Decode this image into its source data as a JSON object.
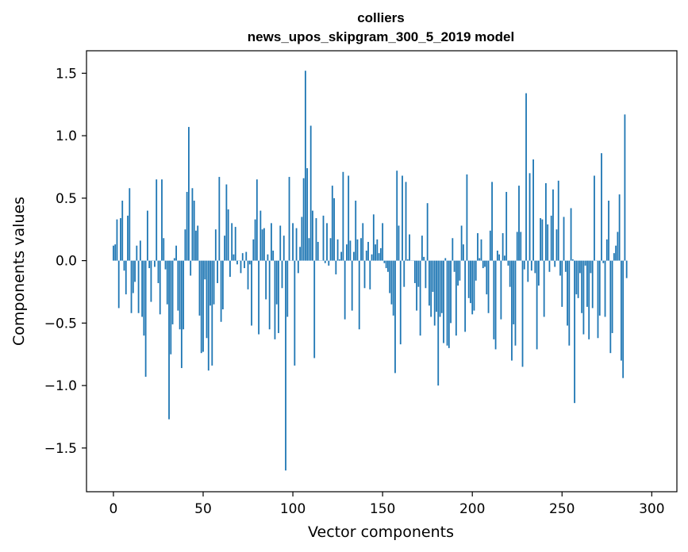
{
  "chart_data": {
    "type": "bar",
    "title": "colliers",
    "subtitle": "news_upos_skipgram_300_5_2019 model",
    "xlabel": "Vector components",
    "ylabel": "Components values",
    "xlim": [
      -15,
      314
    ],
    "ylim": [
      -1.85,
      1.68
    ],
    "xticks": [
      0,
      50,
      100,
      150,
      200,
      250,
      300
    ],
    "yticks": [
      -1.5,
      -1.0,
      -0.5,
      0.0,
      0.5,
      1.0,
      1.5
    ],
    "xtick_labels": [
      "0",
      "50",
      "100",
      "150",
      "200",
      "250",
      "300"
    ],
    "ytick_labels": [
      "−1.5",
      "−1.0",
      "−0.5",
      "0.0",
      "0.5",
      "1.0",
      "1.5"
    ],
    "bar_color": "#1f77b4",
    "values": [
      0.12,
      0.13,
      0.33,
      -0.38,
      0.34,
      0.48,
      -0.08,
      -0.27,
      0.36,
      0.58,
      -0.42,
      -0.26,
      -0.17,
      0.12,
      -0.42,
      0.16,
      -0.45,
      -0.6,
      -0.93,
      0.4,
      -0.06,
      -0.33,
      0.0,
      -0.05,
      0.65,
      -0.18,
      -0.43,
      0.65,
      0.18,
      -0.07,
      -0.35,
      -1.27,
      -0.75,
      -0.51,
      0.02,
      0.12,
      -0.4,
      -0.55,
      -0.86,
      -0.55,
      0.25,
      0.55,
      1.07,
      -0.12,
      0.58,
      0.48,
      0.24,
      0.28,
      -0.44,
      -0.74,
      -0.73,
      -0.15,
      -0.62,
      -0.88,
      -0.36,
      -0.84,
      -0.35,
      0.25,
      -0.18,
      0.67,
      -0.49,
      -0.39,
      0.2,
      0.61,
      0.41,
      -0.13,
      0.3,
      0.05,
      0.27,
      -0.03,
      0.0,
      -0.1,
      0.06,
      -0.06,
      0.07,
      -0.23,
      -0.03,
      -0.52,
      0.17,
      0.33,
      0.65,
      -0.59,
      0.4,
      0.25,
      0.26,
      -0.31,
      0.05,
      -0.55,
      0.3,
      0.08,
      -0.63,
      -0.35,
      -0.58,
      0.28,
      -0.22,
      0.2,
      -1.68,
      -0.45,
      0.67,
      0.0,
      0.3,
      -0.84,
      0.26,
      -0.1,
      0.11,
      0.35,
      0.66,
      1.52,
      0.74,
      0.18,
      1.08,
      0.4,
      -0.78,
      0.34,
      0.15,
      0.0,
      0.0,
      0.36,
      -0.02,
      0.3,
      -0.04,
      0.18,
      0.6,
      0.5,
      -0.11,
      0.17,
      0.01,
      0.07,
      0.71,
      -0.47,
      0.13,
      0.68,
      0.16,
      -0.4,
      0.07,
      0.48,
      0.17,
      -0.55,
      0.18,
      0.3,
      -0.22,
      0.08,
      0.15,
      -0.23,
      0.05,
      0.37,
      0.13,
      0.17,
      0.06,
      0.1,
      0.3,
      -0.02,
      -0.06,
      -0.09,
      -0.26,
      -0.35,
      -0.44,
      -0.9,
      0.72,
      0.28,
      -0.67,
      0.68,
      -0.21,
      0.63,
      0.01,
      0.21,
      0.0,
      0.0,
      -0.18,
      -0.4,
      -0.21,
      -0.6,
      0.2,
      0.03,
      -0.22,
      0.46,
      -0.36,
      -0.45,
      -0.25,
      -0.52,
      -0.41,
      -1.0,
      -0.45,
      -0.42,
      -0.66,
      0.02,
      -0.68,
      -0.7,
      -0.5,
      0.18,
      -0.09,
      -0.6,
      -0.2,
      -0.16,
      0.28,
      0.13,
      -0.57,
      0.69,
      -0.3,
      -0.34,
      -0.43,
      -0.4,
      -0.16,
      0.22,
      0.02,
      0.17,
      -0.06,
      -0.05,
      -0.27,
      -0.42,
      0.24,
      0.63,
      -0.63,
      -0.71,
      0.08,
      0.05,
      -0.47,
      0.22,
      0.04,
      0.55,
      -0.04,
      -0.21,
      -0.8,
      -0.51,
      -0.68,
      0.23,
      0.6,
      0.23,
      -0.85,
      -0.07,
      1.34,
      -0.17,
      0.7,
      -0.08,
      0.81,
      -0.1,
      -0.71,
      -0.2,
      0.34,
      0.33,
      -0.45,
      0.62,
      0.29,
      -0.09,
      0.36,
      0.57,
      -0.05,
      0.25,
      0.64,
      -0.12,
      -0.37,
      0.35,
      -0.09,
      -0.52,
      -0.68,
      0.42,
      0.01,
      -1.14,
      -0.27,
      -0.3,
      -0.1,
      -0.42,
      -0.59,
      -0.04,
      -0.37,
      -0.63,
      -0.1,
      -0.38,
      0.68,
      0.0,
      -0.62,
      -0.44,
      0.86,
      -0.02,
      -0.45,
      0.17,
      0.48,
      -0.74,
      -0.58,
      0.06,
      0.12,
      0.23,
      0.53,
      -0.8,
      -0.94,
      1.17,
      -0.14
    ]
  }
}
